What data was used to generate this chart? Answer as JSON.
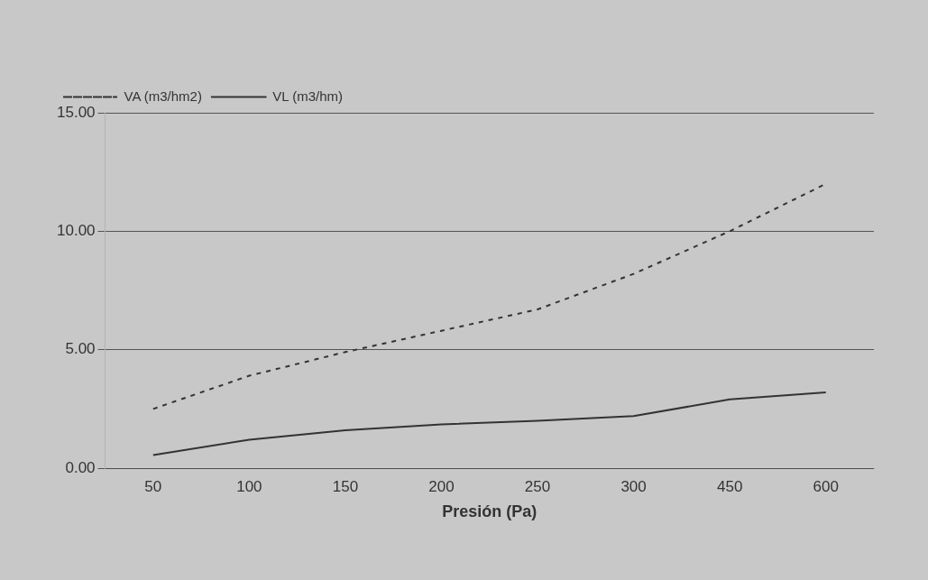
{
  "chart_data": {
    "type": "line",
    "xlabel": "Presión (Pa)",
    "categories": [
      "50",
      "100",
      "150",
      "200",
      "250",
      "300",
      "450",
      "600"
    ],
    "series": [
      {
        "name": "VA (m3/hm2)",
        "color": "#333333",
        "line_style": "dotted",
        "values": [
          2.5,
          3.9,
          4.9,
          5.8,
          6.7,
          8.2,
          10.0,
          12.0
        ]
      },
      {
        "name": "VL (m3/hm)",
        "color": "#333333",
        "line_style": "solid",
        "values": [
          0.55,
          1.2,
          1.6,
          1.85,
          2.0,
          2.2,
          2.9,
          3.2
        ]
      }
    ],
    "ylim": [
      0,
      15
    ],
    "yticks": [
      {
        "value": 0,
        "label": "0.00"
      },
      {
        "value": 5,
        "label": "5.00"
      },
      {
        "value": 10,
        "label": "10.00"
      },
      {
        "value": 15,
        "label": "15.00"
      }
    ],
    "grid": "y",
    "legend": "top left",
    "marker": "none"
  }
}
